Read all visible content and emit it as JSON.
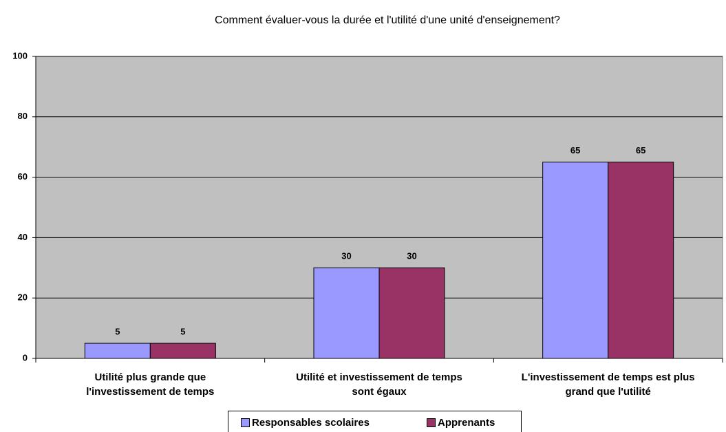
{
  "chart_data": {
    "type": "bar",
    "title": "Comment évaluer-vous la durée et l'utilité d'une unité d'enseignement?",
    "categories": [
      "Utilité plus  grande que\nl'investissement de temps",
      "Utilité et investissement de temps\nsont égaux",
      "L'investissement de temps est plus\ngrand que l'utilité"
    ],
    "series": [
      {
        "name": "Responsables scolaires",
        "color": "#9999ff",
        "values": [
          5,
          30,
          65
        ]
      },
      {
        "name": "Apprenants",
        "color": "#993366",
        "values": [
          5,
          30,
          65
        ]
      }
    ],
    "ylim": [
      0,
      100
    ],
    "yticks": [
      0,
      20,
      40,
      60,
      80,
      100
    ],
    "grid": true,
    "legend": "bottom"
  }
}
